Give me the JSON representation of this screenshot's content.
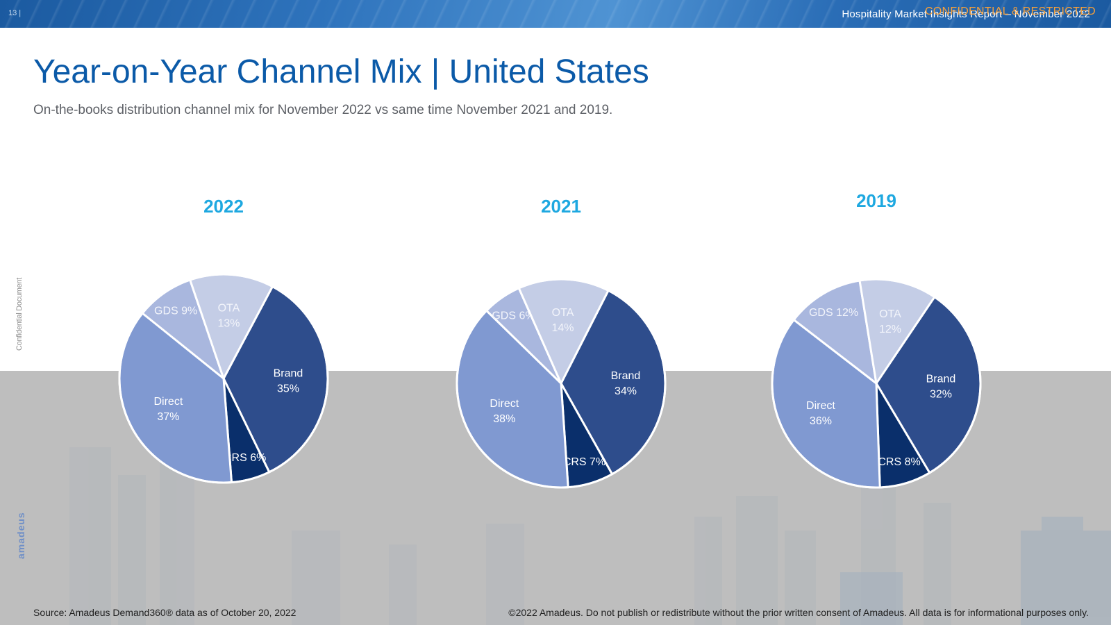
{
  "header": {
    "page_number": "13 |",
    "report_title": "Hospitality Market Insights Report – November 2022",
    "confidential_label": "CONFIDENTIAL & RESTRICTED"
  },
  "title": "Year-on-Year Channel Mix | United States",
  "subtitle": "On-the-books distribution channel mix for November 2022 vs same time November 2021 and 2019.",
  "side_label": "Confidential Document",
  "logo_text": "amadeus",
  "footer": {
    "source": "Source: Amadeus Demand360® data as of October 20, 2022",
    "copyright": "©2022 Amadeus. Do not publish or redistribute without the prior written consent of Amadeus. All data is for informational purposes only."
  },
  "colors": {
    "Brand": "#2e4d8c",
    "CRS": "#0a2f6b",
    "Direct": "#8099d1",
    "GDS": "#a9b7de",
    "OTA": "#c4cde6",
    "year_title": "#1ea8e0",
    "title": "#0b5aa8"
  },
  "chart_data": [
    {
      "type": "pie",
      "title": "2022",
      "categories": [
        "Brand",
        "CRS",
        "Direct",
        "GDS",
        "OTA"
      ],
      "values": [
        35,
        6,
        37,
        9,
        13
      ],
      "labels": [
        "35%",
        "6%",
        "37%",
        "9%",
        "13%"
      ]
    },
    {
      "type": "pie",
      "title": "2021",
      "categories": [
        "Brand",
        "CRS",
        "Direct",
        "GDS",
        "OTA"
      ],
      "values": [
        34,
        7,
        38,
        6,
        14
      ],
      "labels": [
        "34%",
        "7%",
        "38%",
        "6%",
        "14%"
      ]
    },
    {
      "type": "pie",
      "title": "2019",
      "categories": [
        "Brand",
        "CRS",
        "Direct",
        "GDS",
        "OTA"
      ],
      "values": [
        32,
        8,
        36,
        12,
        12
      ],
      "labels": [
        "32%",
        "8%",
        "36%",
        "12%",
        "12%"
      ]
    }
  ]
}
